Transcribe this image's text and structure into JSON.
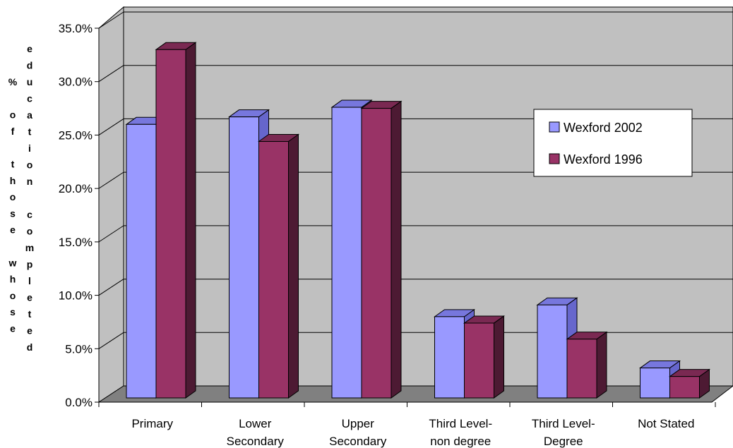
{
  "chart_data": {
    "type": "bar",
    "categories": [
      [
        "Primary"
      ],
      [
        "Lower",
        "Secondary"
      ],
      [
        "Upper",
        "Secondary"
      ],
      [
        "Third Level-",
        "non degree"
      ],
      [
        "Third Level-",
        "Degree"
      ],
      [
        "Not Stated"
      ]
    ],
    "series": [
      {
        "name": "Wexford 2002",
        "values": [
          26.0,
          26.7,
          27.6,
          8.0,
          9.1,
          3.2
        ],
        "color": "#9999ff",
        "side": "#6666cc",
        "top": "#7777dd"
      },
      {
        "name": "Wexford 1996",
        "values": [
          33.0,
          24.4,
          27.5,
          7.4,
          5.9,
          2.4
        ],
        "color": "#993366",
        "side": "#4d1a33",
        "top": "#7a2952"
      }
    ],
    "y_ticks": [
      "0.0%",
      "5.0%",
      "10.0%",
      "15.0%",
      "20.0%",
      "25.0%",
      "30.0%",
      "35.0%"
    ],
    "ylim": [
      0,
      35
    ],
    "ylabel_col1": [
      "%",
      "",
      "o",
      "f",
      "",
      "t",
      "h",
      "o",
      "s",
      "e",
      "",
      "w",
      "h",
      "o",
      "s",
      "e"
    ],
    "ylabel_col2": [
      "e",
      "d",
      "u",
      "c",
      "a",
      "t",
      "i",
      "o",
      "n",
      "",
      "c",
      "o",
      "m",
      "p",
      "l",
      "e",
      "t",
      "e",
      "d"
    ],
    "grid": true,
    "legend_position": "right"
  }
}
